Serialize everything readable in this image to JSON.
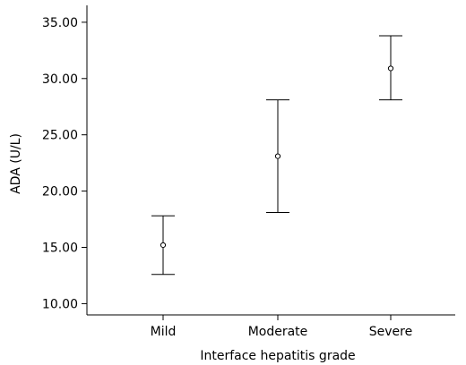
{
  "chart_data": {
    "type": "scatter",
    "subtype": "error-bar",
    "title": "",
    "xlabel": "Interface hepatitis grade",
    "ylabel": "ADA (U/L)",
    "categories": [
      "Mild",
      "Moderate",
      "Severe"
    ],
    "series": [
      {
        "values": [
          15.2,
          23.1,
          30.9
        ],
        "lower": [
          12.6,
          18.1,
          28.1
        ],
        "upper": [
          17.8,
          28.1,
          33.8
        ]
      }
    ],
    "ylim": [
      9.0,
      36.5
    ],
    "yticks": [
      10,
      15,
      20,
      25,
      30,
      35
    ],
    "ytick_labels": [
      "10.00",
      "15.00",
      "20.00",
      "25.00",
      "30.00",
      "35.00"
    ],
    "grid": false,
    "legend": "none"
  },
  "colors": {
    "mark": "#000000",
    "background": "#ffffff"
  }
}
